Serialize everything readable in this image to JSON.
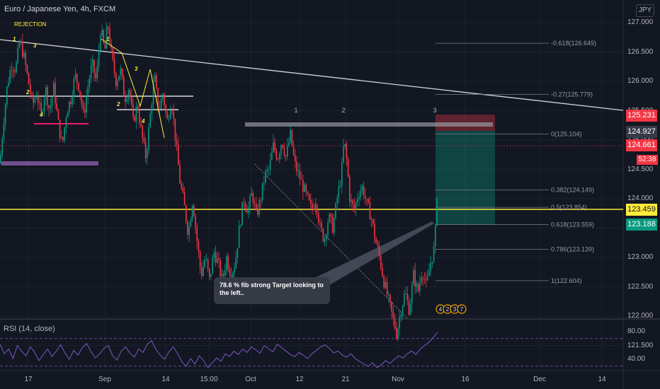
{
  "header": {
    "title": "Euro / Japanese Yen, 4h, FXCM",
    "currency_button": "JPY"
  },
  "annotations": {
    "rejection": "REJECTION",
    "callout": "78.6 % fib strong Target looking to the left..",
    "wave_labels_left": [
      "1",
      "3",
      "2",
      "4"
    ],
    "wave_labels_mid": [
      "1",
      "3",
      "2",
      "4"
    ],
    "peaks": [
      "1",
      "2",
      "3"
    ],
    "event_badges": [
      "4",
      "2",
      "3",
      "7"
    ]
  },
  "fib_levels": [
    {
      "label": "-0.618(126.649)",
      "value": 126.649
    },
    {
      "label": "-0.27(125.779)",
      "value": 125.779
    },
    {
      "label": "0(125.104)",
      "value": 125.104
    },
    {
      "label": "0.382(124.149)",
      "value": 124.149
    },
    {
      "label": "0.5(123.854)",
      "value": 123.854
    },
    {
      "label": "0.618(123.559)",
      "value": 123.559
    },
    {
      "label": "0.786(123.139)",
      "value": 123.139
    },
    {
      "label": "1(122.604)",
      "value": 122.604
    }
  ],
  "price_tags": [
    {
      "label": "125.231",
      "color": "#f23645"
    },
    {
      "label": "124.927",
      "color": "#363a45"
    },
    {
      "label": "124.661",
      "color": "#f23645"
    },
    {
      "label": "123.459",
      "color": "#ffeb3b"
    },
    {
      "label": "123.188",
      "color": "#089981"
    }
  ],
  "countdown": "52:38",
  "chart_data": {
    "type": "candlestick",
    "symbol": "EURJPY",
    "interval": "4h",
    "y_axis_ticks": [
      "127.000",
      "126.500",
      "126.000",
      "125.500",
      "125.000",
      "124.500",
      "124.000",
      "123.500",
      "123.000",
      "122.500",
      "122.000",
      "121.500"
    ],
    "ylim": [
      121.45,
      127.25
    ],
    "x_axis_ticks": [
      "17",
      "Sep",
      "14",
      "15:00",
      "Oct",
      "12",
      "21",
      "Nov",
      "16",
      "Dec",
      "14"
    ],
    "key_levels": {
      "horizontal_support": 123.459,
      "entry": 123.188,
      "stop_loss": 125.231,
      "last_price": 124.661
    },
    "price_path": [
      [
        0,
        124.6
      ],
      [
        4,
        125.2
      ],
      [
        10,
        125.9
      ],
      [
        16,
        126.3
      ],
      [
        22,
        126.2
      ],
      [
        28,
        126.7
      ],
      [
        34,
        126.4
      ],
      [
        40,
        126.0
      ],
      [
        46,
        125.6
      ],
      [
        52,
        125.8
      ],
      [
        58,
        125.4
      ],
      [
        64,
        125.9
      ],
      [
        70,
        125.5
      ],
      [
        76,
        125.9
      ],
      [
        82,
        125.3
      ],
      [
        88,
        124.9
      ],
      [
        94,
        125.5
      ],
      [
        100,
        125.7
      ],
      [
        106,
        126.1
      ],
      [
        112,
        125.9
      ],
      [
        118,
        125.4
      ],
      [
        124,
        125.9
      ],
      [
        130,
        126.3
      ],
      [
        136,
        126.0
      ],
      [
        142,
        126.9
      ],
      [
        148,
        126.5
      ],
      [
        152,
        127.0
      ],
      [
        158,
        126.4
      ],
      [
        164,
        126.0
      ],
      [
        170,
        126.2
      ],
      [
        176,
        125.7
      ],
      [
        182,
        125.9
      ],
      [
        188,
        125.3
      ],
      [
        194,
        125.6
      ],
      [
        200,
        125.1
      ],
      [
        206,
        124.7
      ],
      [
        212,
        125.4
      ],
      [
        218,
        126.1
      ],
      [
        224,
        125.5
      ],
      [
        230,
        125.8
      ],
      [
        236,
        125.3
      ],
      [
        242,
        125.7
      ],
      [
        248,
        125.0
      ],
      [
        254,
        124.3
      ],
      [
        260,
        123.9
      ],
      [
        266,
        123.4
      ],
      [
        272,
        124.0
      ],
      [
        278,
        123.3
      ],
      [
        284,
        122.7
      ],
      [
        290,
        123.0
      ],
      [
        296,
        122.6
      ],
      [
        302,
        123.1
      ],
      [
        308,
        122.9
      ],
      [
        314,
        122.6
      ],
      [
        320,
        123.0
      ],
      [
        326,
        122.7
      ],
      [
        332,
        122.9
      ],
      [
        338,
        123.5
      ],
      [
        344,
        124.0
      ],
      [
        350,
        123.8
      ],
      [
        356,
        124.1
      ],
      [
        362,
        123.7
      ],
      [
        368,
        124.0
      ],
      [
        374,
        124.4
      ],
      [
        380,
        124.5
      ],
      [
        386,
        124.9
      ],
      [
        392,
        124.7
      ],
      [
        398,
        125.0
      ],
      [
        404,
        124.7
      ],
      [
        410,
        125.1
      ],
      [
        416,
        124.6
      ],
      [
        422,
        124.4
      ],
      [
        428,
        124.2
      ],
      [
        434,
        124.0
      ],
      [
        440,
        123.8
      ],
      [
        446,
        124.0
      ],
      [
        452,
        123.5
      ],
      [
        458,
        123.3
      ],
      [
        464,
        123.7
      ],
      [
        470,
        123.5
      ],
      [
        476,
        124.0
      ],
      [
        482,
        124.4
      ],
      [
        486,
        125.0
      ],
      [
        490,
        124.6
      ],
      [
        494,
        124.0
      ],
      [
        500,
        123.8
      ],
      [
        506,
        124.1
      ],
      [
        512,
        124.2
      ],
      [
        518,
        123.9
      ],
      [
        524,
        123.7
      ],
      [
        530,
        123.3
      ],
      [
        536,
        123.0
      ],
      [
        542,
        122.6
      ],
      [
        548,
        122.3
      ],
      [
        554,
        122.0
      ],
      [
        560,
        121.7
      ],
      [
        566,
        122.1
      ],
      [
        572,
        122.4
      ],
      [
        578,
        122.1
      ],
      [
        584,
        122.7
      ],
      [
        590,
        122.4
      ],
      [
        596,
        122.8
      ],
      [
        602,
        122.5
      ],
      [
        608,
        122.9
      ],
      [
        614,
        123.2
      ],
      [
        617,
        124.1
      ],
      [
        619,
        125.0
      ]
    ]
  },
  "rsi": {
    "title": "RSI (14, close)",
    "ticks": [
      "80.00",
      "40.00"
    ],
    "upper_band": 70,
    "lower_band": 30,
    "ylim": [
      15,
      95
    ],
    "values": [
      62,
      48,
      55,
      41,
      60,
      52,
      45,
      58,
      50,
      38,
      47,
      55,
      44,
      52,
      61,
      49,
      40,
      53,
      46,
      57,
      63,
      51,
      42,
      48,
      56,
      60,
      45,
      39,
      52,
      58,
      49,
      43,
      55,
      50,
      62,
      67,
      54,
      46,
      40,
      51,
      58,
      48,
      36,
      30,
      41,
      33,
      45,
      38,
      28,
      35,
      42,
      37,
      48,
      44,
      52,
      47,
      55,
      50,
      58,
      54,
      49,
      60,
      55,
      51,
      62,
      57,
      52,
      47,
      44,
      50,
      46,
      41,
      48,
      53,
      58,
      61,
      56,
      49,
      52,
      46,
      43,
      48,
      41,
      37,
      33,
      30,
      35,
      28,
      32,
      38,
      34,
      40,
      45,
      42,
      48,
      52,
      47,
      55,
      60,
      65,
      72,
      79
    ]
  }
}
